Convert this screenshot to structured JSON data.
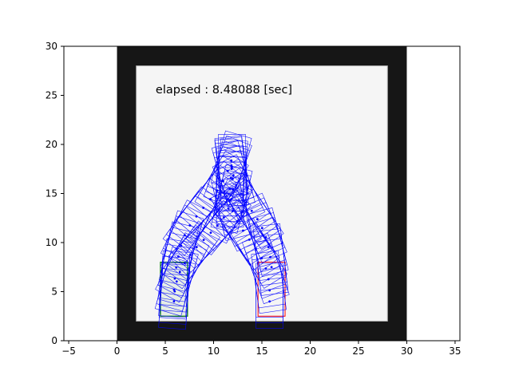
{
  "chart_data": {
    "type": "scatter",
    "title": "",
    "xlabel": "",
    "ylabel": "",
    "xlim": [
      -5.5,
      35.5
    ],
    "ylim": [
      0,
      30
    ],
    "grid": false,
    "x_ticks": [
      -5,
      0,
      5,
      10,
      15,
      20,
      25,
      30,
      35
    ],
    "y_ticks": [
      0,
      5,
      10,
      15,
      20,
      25,
      30
    ],
    "annotation": "elapsed : 8.48088 [sec]",
    "colors": {
      "outer_wall": "#161616",
      "inner_floor": "#f5f5f5",
      "trajectory": "#0000ff",
      "start_box": "#008000",
      "goal_box": "#ff0000"
    },
    "arena": {
      "outer": {
        "x": [
          0,
          30
        ],
        "y": [
          0,
          30
        ]
      },
      "inner": {
        "x": [
          2,
          28
        ],
        "y": [
          2,
          28
        ]
      }
    },
    "vehicle": {
      "width": 2.8,
      "length": 5.5
    },
    "start_box": {
      "x": [
        4.5,
        7.3
      ],
      "y": [
        2.5,
        8
      ]
    },
    "goal_box": {
      "x": [
        14.6,
        17.4
      ],
      "y": [
        2.5,
        8
      ]
    },
    "paths": [
      {
        "name": "",
        "x": [
          5.9,
          6.0,
          6.4,
          7.1,
          8.0,
          9.1,
          10.2,
          11.1,
          11.7,
          12.0,
          12.0,
          11.9,
          11.8,
          11.9,
          12.3,
          13.0,
          13.9,
          14.8,
          15.4,
          15.8,
          16.0
        ],
        "y": [
          4.0,
          5.4,
          6.8,
          8.1,
          9.3,
          10.4,
          11.5,
          12.6,
          13.8,
          15.0,
          16.2,
          17.3,
          18.2,
          17.4,
          16.0,
          14.6,
          13.3,
          12.0,
          10.6,
          9.1,
          7.5
        ]
      },
      {
        "name": "",
        "x": [
          15.8,
          15.8,
          15.6,
          15.1,
          14.3,
          13.4,
          12.6,
          12.0,
          11.7,
          11.7,
          11.8,
          11.9,
          11.9,
          11.7,
          11.2,
          10.4,
          9.4,
          8.4,
          7.5,
          6.9,
          6.5,
          6.2,
          6.0,
          5.9
        ],
        "y": [
          4.0,
          5.4,
          6.8,
          8.2,
          9.5,
          10.7,
          11.9,
          13.1,
          14.3,
          15.5,
          16.7,
          17.8,
          18.6,
          17.9,
          16.6,
          15.3,
          14.1,
          12.9,
          11.7,
          10.5,
          9.2,
          7.9,
          6.6,
          5.2
        ]
      }
    ]
  }
}
